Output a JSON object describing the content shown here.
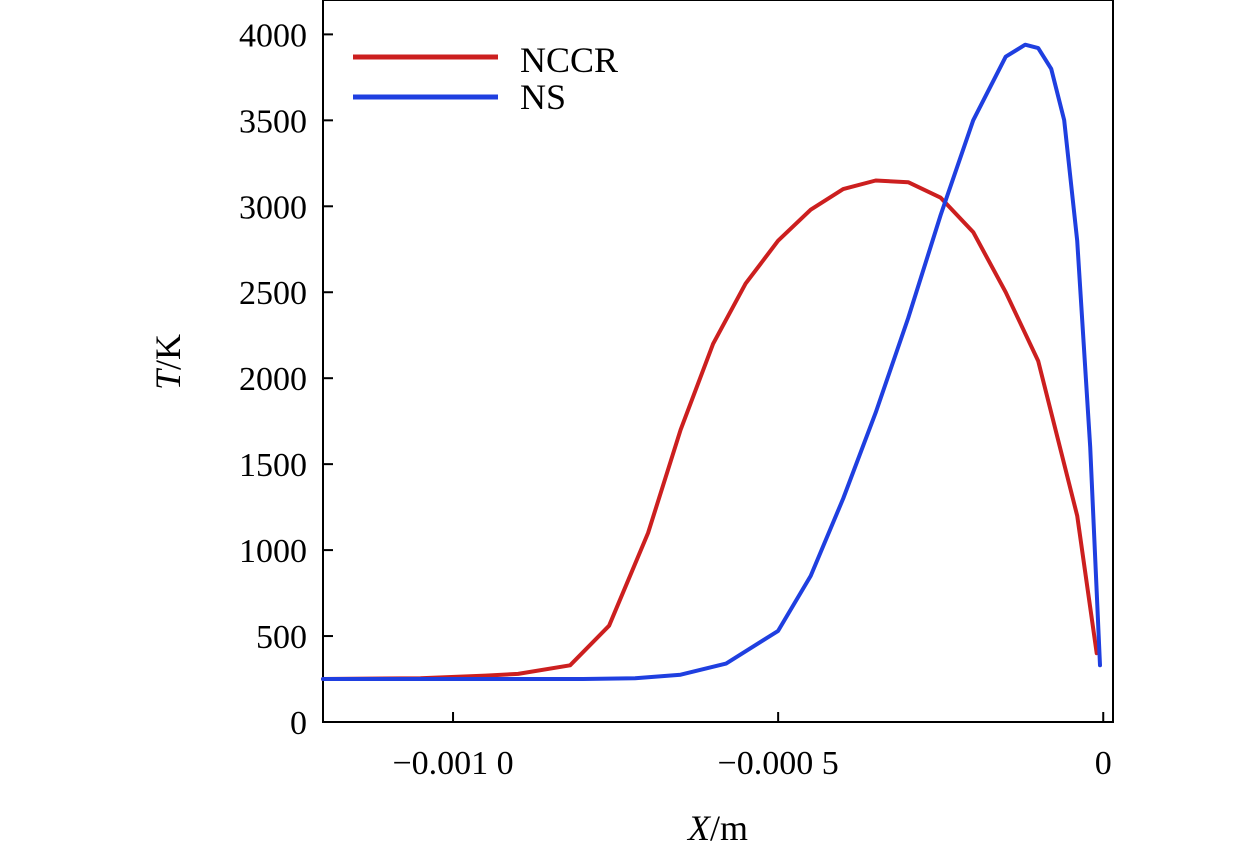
{
  "chart_data": {
    "type": "line",
    "xlabel": {
      "var": "X",
      "unit": "/m"
    },
    "ylabel": {
      "var": "T",
      "unit": "/K"
    },
    "xlim": [
      -0.0012,
      1.5e-05
    ],
    "ylim": [
      0,
      4200
    ],
    "xticks": [
      {
        "value": -0.001,
        "label": "−0.001 0"
      },
      {
        "value": -0.0005,
        "label": "−0.000 5"
      },
      {
        "value": 0,
        "label": "0"
      }
    ],
    "yticks": [
      {
        "value": 0,
        "label": "0"
      },
      {
        "value": 500,
        "label": "500"
      },
      {
        "value": 1000,
        "label": "1000"
      },
      {
        "value": 1500,
        "label": "1500"
      },
      {
        "value": 2000,
        "label": "2000"
      },
      {
        "value": 2500,
        "label": "2500"
      },
      {
        "value": 3000,
        "label": "3000"
      },
      {
        "value": 3500,
        "label": "3500"
      },
      {
        "value": 4000,
        "label": "4000"
      }
    ],
    "grid": false,
    "legend_position": "top-left",
    "series": [
      {
        "name": "NCCR",
        "color": "#cc1f1f",
        "points": [
          [
            -0.0012,
            250
          ],
          [
            -0.00105,
            255
          ],
          [
            -0.00095,
            270
          ],
          [
            -0.0009,
            280
          ],
          [
            -0.00082,
            330
          ],
          [
            -0.00076,
            560
          ],
          [
            -0.0007,
            1100
          ],
          [
            -0.00065,
            1700
          ],
          [
            -0.0006,
            2200
          ],
          [
            -0.00055,
            2550
          ],
          [
            -0.0005,
            2800
          ],
          [
            -0.00045,
            2980
          ],
          [
            -0.0004,
            3100
          ],
          [
            -0.00035,
            3150
          ],
          [
            -0.0003,
            3140
          ],
          [
            -0.00025,
            3050
          ],
          [
            -0.0002,
            2850
          ],
          [
            -0.00015,
            2500
          ],
          [
            -0.0001,
            2100
          ],
          [
            -4e-05,
            1200
          ],
          [
            -1e-05,
            400
          ]
        ]
      },
      {
        "name": "NS",
        "color": "#1f3fe0",
        "points": [
          [
            -0.0012,
            250
          ],
          [
            -0.001,
            250
          ],
          [
            -0.0008,
            250
          ],
          [
            -0.00072,
            255
          ],
          [
            -0.00065,
            275
          ],
          [
            -0.00058,
            340
          ],
          [
            -0.0005,
            530
          ],
          [
            -0.00045,
            850
          ],
          [
            -0.0004,
            1300
          ],
          [
            -0.00035,
            1800
          ],
          [
            -0.0003,
            2350
          ],
          [
            -0.00025,
            2950
          ],
          [
            -0.0002,
            3500
          ],
          [
            -0.00015,
            3870
          ],
          [
            -0.00012,
            3940
          ],
          [
            -0.0001,
            3920
          ],
          [
            -8e-05,
            3800
          ],
          [
            -6e-05,
            3500
          ],
          [
            -4e-05,
            2800
          ],
          [
            -2e-05,
            1600
          ],
          [
            -5e-06,
            330
          ]
        ]
      }
    ]
  }
}
